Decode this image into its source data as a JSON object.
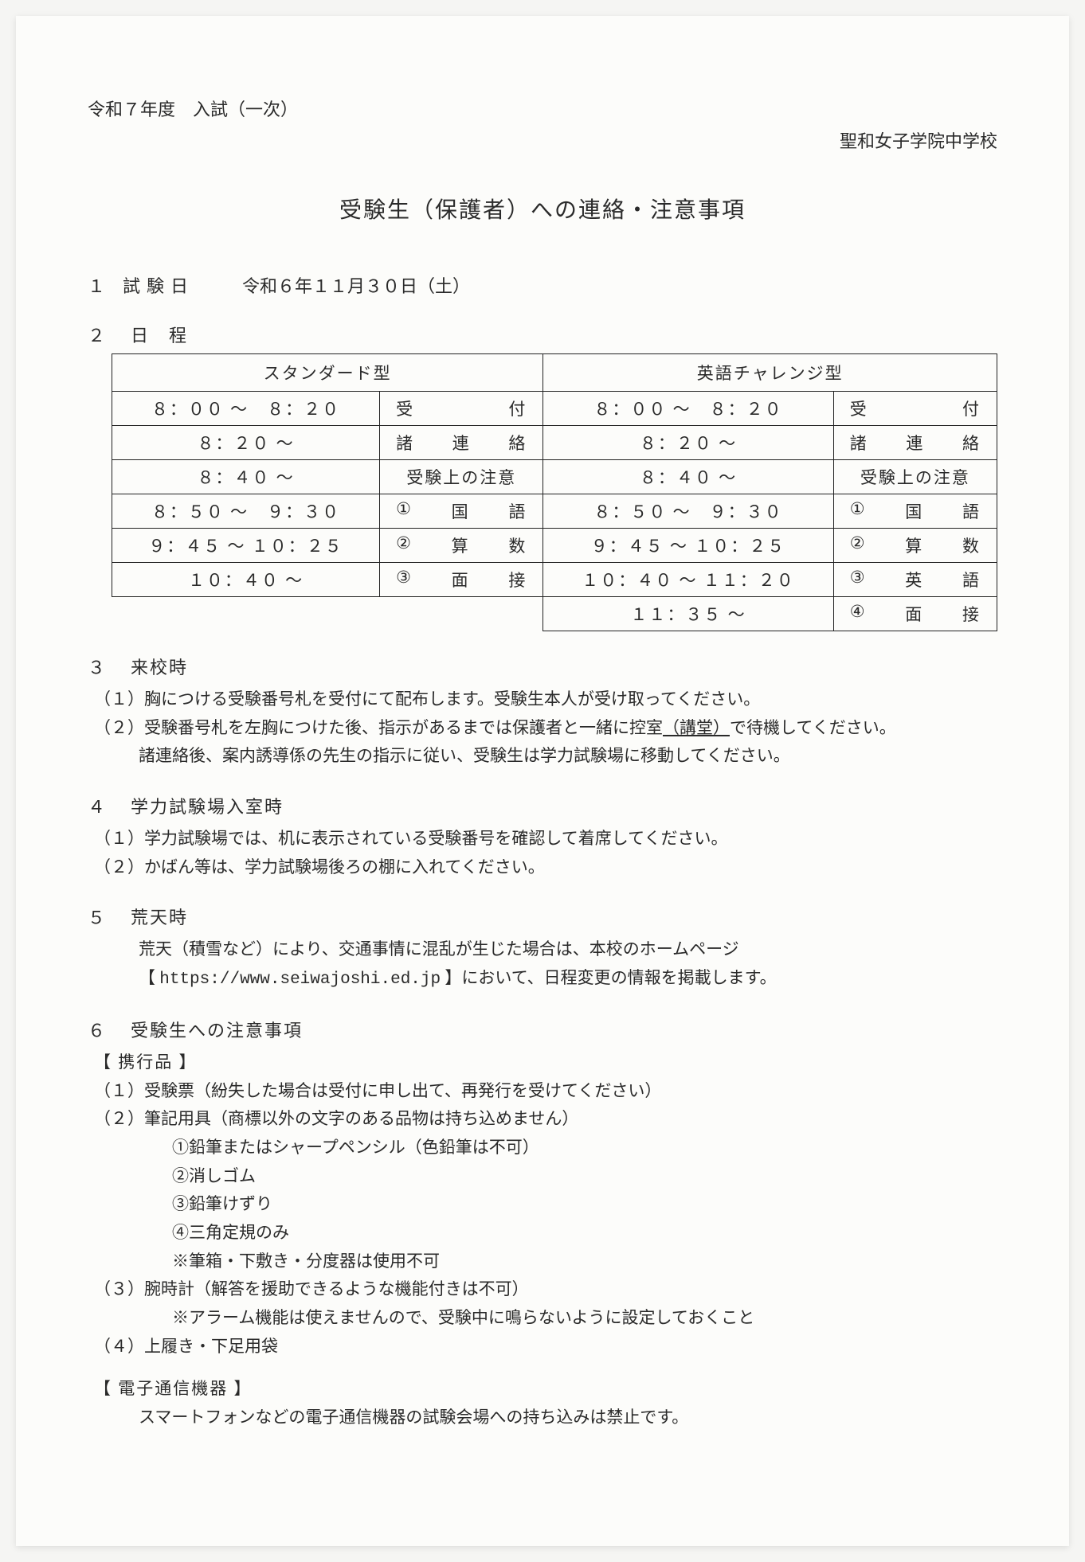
{
  "header": {
    "year_exam": "令和７年度　入試（一次）",
    "school": "聖和女子学院中学校"
  },
  "title": "受験生（保護者）への連絡・注意事項",
  "sections": {
    "s1": {
      "num": "１",
      "label": "試験日",
      "date": "令和６年１１月３０日（土）"
    },
    "s2": {
      "num": "２",
      "label": "日　程"
    },
    "s3": {
      "num": "３",
      "label": "来校時"
    },
    "s4": {
      "num": "４",
      "label": "学力試験場入室時"
    },
    "s5": {
      "num": "５",
      "label": "荒天時"
    },
    "s6": {
      "num": "６",
      "label": "受験生への注意事項"
    }
  },
  "schedule": {
    "headers": {
      "left": "スタンダード型",
      "right": "英語チャレンジ型"
    },
    "rows": [
      {
        "lt": "８：００ ～　８：２０",
        "ll": [
          "受",
          "付"
        ],
        "rt": "８：００ ～　８：２０",
        "rl": [
          "受",
          "付"
        ]
      },
      {
        "lt": "８：２０ ～",
        "ll": [
          "諸",
          "連",
          "絡"
        ],
        "rt": "８：２０ ～",
        "rl": [
          "諸",
          "連",
          "絡"
        ]
      },
      {
        "lt": "８：４０ ～",
        "ll_plain": "受験上の注意",
        "rt": "８：４０ ～",
        "rl_plain": "受験上の注意"
      },
      {
        "lt": "８：５０ ～　９：３０",
        "ll": [
          "①",
          "国",
          "語"
        ],
        "rt": "８：５０ ～　９：３０",
        "rl": [
          "①",
          "国",
          "語"
        ]
      },
      {
        "lt": "９：４５ ～ １０：２５",
        "ll": [
          "②",
          "算",
          "数"
        ],
        "rt": "９：４５ ～ １０：２５",
        "rl": [
          "②",
          "算",
          "数"
        ]
      },
      {
        "lt": "１０：４０ ～",
        "ll": [
          "③",
          "面",
          "接"
        ],
        "rt": "１０：４０ ～ １１：２０",
        "rl": [
          "③",
          "英",
          "語"
        ]
      },
      {
        "lt": "",
        "ll_plain": "",
        "rt": "１１：３５ ～",
        "rl": [
          "④",
          "面",
          "接"
        ]
      }
    ]
  },
  "s3_items": {
    "l1": "（１）胸につける受験番号札を受付にて配布します。受験生本人が受け取ってください。",
    "l2a": "（２）受験番号札を左胸につけた後、指示があるまでは保護者と一緒に控室",
    "l2u": "（講堂）",
    "l2b": "で待機してください。",
    "l3": "諸連絡後、案内誘導係の先生の指示に従い、受験生は学力試験場に移動してください。"
  },
  "s4_items": {
    "l1": "（１）学力試験場では、机に表示されている受験番号を確認して着席してください。",
    "l2": "（２）かばん等は、学力試験場後ろの棚に入れてください。"
  },
  "s5_items": {
    "l1": "荒天（積雪など）により、交通事情に混乱が生じた場合は、本校のホームページ",
    "l2a": "【 ",
    "l2url": "https://www.seiwajoshi.ed.jp",
    "l2b": " 】において、日程変更の情報を掲載します。"
  },
  "s6_items": {
    "b1": "【 携行品 】",
    "l1": "（１）受験票（紛失した場合は受付に申し出て、再発行を受けてください）",
    "l2": "（２）筆記用具（商標以外の文字のある品物は持ち込めません）",
    "l2_1": "①鉛筆またはシャープペンシル（色鉛筆は不可）",
    "l2_2": "②消しゴム",
    "l2_3": "③鉛筆けずり",
    "l2_4": "④三角定規のみ",
    "l2_5": "※筆箱・下敷き・分度器は使用不可",
    "l3": "（３）腕時計（解答を援助できるような機能付きは不可）",
    "l3_1": "※アラーム機能は使えませんので、受験中に鳴らないように設定しておくこと",
    "l4": "（４）上履き・下足用袋",
    "b2": "【 電子通信機器 】",
    "e1": "スマートフォンなどの電子通信機器の試験会場への持ち込みは禁止です。"
  }
}
